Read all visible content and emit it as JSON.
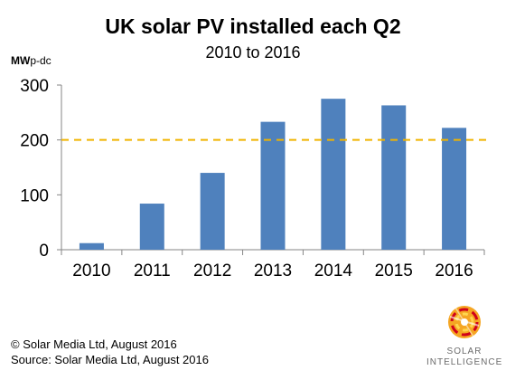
{
  "chart_data": {
    "type": "bar",
    "title": "UK solar PV installed each Q2",
    "subtitle": "2010 to 2016",
    "unit_label": {
      "main": "MW",
      "sub": "p-dc"
    },
    "categories": [
      "2010",
      "2011",
      "2012",
      "2013",
      "2014",
      "2015",
      "2016"
    ],
    "values": [
      12,
      84,
      140,
      233,
      275,
      263,
      222
    ],
    "ylim": [
      0,
      300
    ],
    "yticks": [
      "0",
      "100",
      "200",
      "300"
    ],
    "reference_line": {
      "value": 200,
      "color": "#f0b400",
      "style": "dashed"
    },
    "bar_color": "#4f81bd",
    "grid": false,
    "legend": "none"
  },
  "footer": {
    "copyright": "© Solar Media Ltd, August 2016",
    "source": "Source: Solar Media Ltd, August 2016"
  },
  "logo": {
    "line1": "SOLAR",
    "line2": "INTELLIGENCE",
    "icon": "solar-intelligence-logo-icon"
  }
}
